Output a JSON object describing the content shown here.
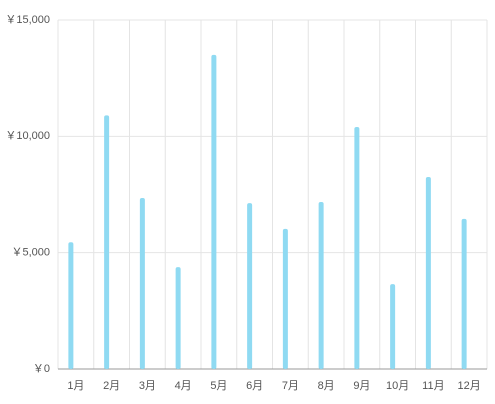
{
  "chart_data": {
    "type": "bar",
    "categories": [
      "1月",
      "2月",
      "3月",
      "4月",
      "5月",
      "6月",
      "7月",
      "8月",
      "9月",
      "10月",
      "11月",
      "12月"
    ],
    "values": [
      5450,
      10900,
      7350,
      4380,
      13500,
      7130,
      6020,
      7180,
      10400,
      3650,
      8250,
      6450
    ],
    "color": "#8fdaf2",
    "ylim": [
      0,
      15000
    ],
    "yticks": [
      {
        "value": 0,
        "label": "￥0"
      },
      {
        "value": 5000,
        "label": "￥5,000"
      },
      {
        "value": 10000,
        "label": "￥10,000"
      },
      {
        "value": 15000,
        "label": "￥15,000"
      }
    ],
    "grid": true
  }
}
